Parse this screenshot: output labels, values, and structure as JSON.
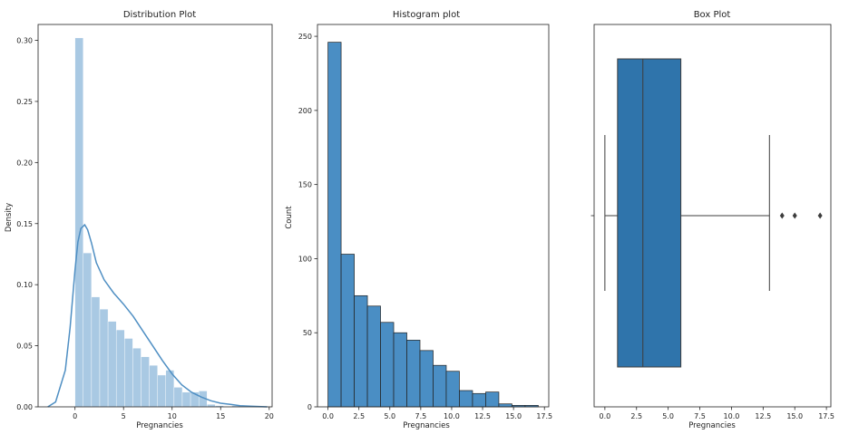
{
  "chart_data": [
    {
      "type": "histogram",
      "title": "Distribution Plot",
      "xlabel": "Pregnancies",
      "ylabel": "Density",
      "xlim": [
        -3.8,
        20.3
      ],
      "ylim": [
        0,
        0.313
      ],
      "xticks": [
        0,
        5,
        10,
        15,
        20
      ],
      "yticks": [
        0.0,
        0.05,
        0.1,
        0.15,
        0.2,
        0.25,
        0.3
      ],
      "ytick_labels": [
        "0.00",
        "0.05",
        "0.10",
        "0.15",
        "0.20",
        "0.25",
        "0.30"
      ],
      "bar_color": "#a9c9e3",
      "line_color": "#4f8fc3",
      "bins": [
        {
          "x0": 0.0,
          "x1": 0.85,
          "value": 0.302
        },
        {
          "x0": 0.85,
          "x1": 1.7,
          "value": 0.126
        },
        {
          "x0": 1.7,
          "x1": 2.55,
          "value": 0.09
        },
        {
          "x0": 2.55,
          "x1": 3.4,
          "value": 0.08
        },
        {
          "x0": 3.4,
          "x1": 4.25,
          "value": 0.07
        },
        {
          "x0": 4.25,
          "x1": 5.1,
          "value": 0.063
        },
        {
          "x0": 5.1,
          "x1": 5.95,
          "value": 0.056
        },
        {
          "x0": 5.95,
          "x1": 6.8,
          "value": 0.048
        },
        {
          "x0": 6.8,
          "x1": 7.65,
          "value": 0.041
        },
        {
          "x0": 7.65,
          "x1": 8.5,
          "value": 0.034
        },
        {
          "x0": 8.5,
          "x1": 9.35,
          "value": 0.026
        },
        {
          "x0": 9.35,
          "x1": 10.2,
          "value": 0.03
        },
        {
          "x0": 10.2,
          "x1": 11.05,
          "value": 0.016
        },
        {
          "x0": 11.05,
          "x1": 11.9,
          "value": 0.012
        },
        {
          "x0": 11.9,
          "x1": 12.75,
          "value": 0.012
        },
        {
          "x0": 12.75,
          "x1": 13.6,
          "value": 0.013
        },
        {
          "x0": 13.6,
          "x1": 14.45,
          "value": 0.002
        },
        {
          "x0": 14.45,
          "x1": 15.3,
          "value": 0.001
        },
        {
          "x0": 15.3,
          "x1": 16.15,
          "value": 0.0
        },
        {
          "x0": 16.15,
          "x1": 17.0,
          "value": 0.001
        }
      ],
      "kde": {
        "x": [
          -2.8,
          -2,
          -1,
          -0.5,
          0,
          0.3,
          0.6,
          1,
          1.3,
          1.7,
          2.2,
          3,
          4,
          5,
          6,
          7,
          8,
          9,
          10,
          11,
          12,
          13,
          14,
          15,
          16,
          17,
          18,
          19.8
        ],
        "y": [
          0.0,
          0.004,
          0.03,
          0.065,
          0.112,
          0.135,
          0.146,
          0.149,
          0.145,
          0.134,
          0.118,
          0.104,
          0.093,
          0.084,
          0.074,
          0.062,
          0.05,
          0.038,
          0.027,
          0.018,
          0.012,
          0.008,
          0.005,
          0.003,
          0.002,
          0.001,
          0.0005,
          0.0
        ]
      }
    },
    {
      "type": "histogram",
      "title": "Histogram plot",
      "xlabel": "Pregnancies",
      "ylabel": "Count",
      "xlim": [
        -0.85,
        17.85
      ],
      "ylim": [
        0,
        258
      ],
      "xticks": [
        0,
        2.5,
        5,
        7.5,
        10,
        12.5,
        15,
        17.5
      ],
      "xtick_labels": [
        "0.0",
        "2.5",
        "5.0",
        "7.5",
        "10.0",
        "12.5",
        "15.0",
        "17.5"
      ],
      "yticks": [
        0,
        50,
        100,
        150,
        200,
        250
      ],
      "bar_color": "#4a8ec4",
      "edge_color": "#222222",
      "bins": [
        {
          "x0": 0.0,
          "x1": 1.0625,
          "value": 246
        },
        {
          "x0": 1.0625,
          "x1": 2.125,
          "value": 103
        },
        {
          "x0": 2.125,
          "x1": 3.1875,
          "value": 75
        },
        {
          "x0": 3.1875,
          "x1": 4.25,
          "value": 68
        },
        {
          "x0": 4.25,
          "x1": 5.3125,
          "value": 57
        },
        {
          "x0": 5.3125,
          "x1": 6.375,
          "value": 50
        },
        {
          "x0": 6.375,
          "x1": 7.4375,
          "value": 45
        },
        {
          "x0": 7.4375,
          "x1": 8.5,
          "value": 38
        },
        {
          "x0": 8.5,
          "x1": 9.5625,
          "value": 28
        },
        {
          "x0": 9.5625,
          "x1": 10.625,
          "value": 24
        },
        {
          "x0": 10.625,
          "x1": 11.6875,
          "value": 11
        },
        {
          "x0": 11.6875,
          "x1": 12.75,
          "value": 9
        },
        {
          "x0": 12.75,
          "x1": 13.8125,
          "value": 10
        },
        {
          "x0": 13.8125,
          "x1": 14.875,
          "value": 2
        },
        {
          "x0": 14.875,
          "x1": 15.9375,
          "value": 1
        },
        {
          "x0": 15.9375,
          "x1": 17.0,
          "value": 1
        }
      ]
    },
    {
      "type": "box",
      "title": "Box Plot",
      "xlabel": "Pregnancies",
      "ylabel": "",
      "xlim": [
        -0.85,
        17.85
      ],
      "xticks": [
        0,
        2.5,
        5,
        7.5,
        10,
        12.5,
        15,
        17.5
      ],
      "xtick_labels": [
        "0.0",
        "2.5",
        "5.0",
        "7.5",
        "10.0",
        "12.5",
        "15.0",
        "17.5"
      ],
      "box_color": "#2f74ab",
      "edge_color": "#3d3d3d",
      "whisker_low": 0,
      "q1": 1,
      "median": 3,
      "q3": 6,
      "whisker_high": 13,
      "outliers": [
        14,
        15,
        17
      ]
    }
  ]
}
